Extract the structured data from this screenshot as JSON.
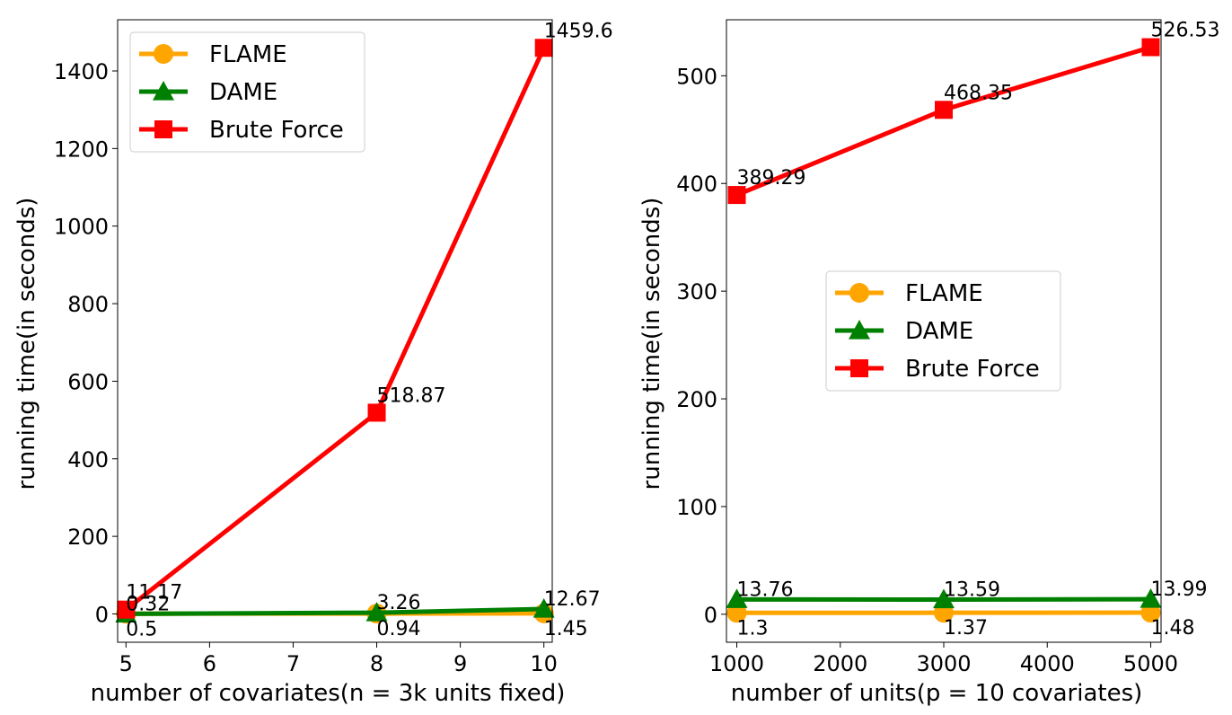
{
  "chart_data": [
    {
      "type": "line",
      "xlabel": "number of covariates(n = 3k units fixed)",
      "ylabel": "running time(in seconds)",
      "x": [
        5,
        8,
        10
      ],
      "xlim": [
        4.9,
        10.1
      ],
      "ylim": [
        -73,
        1532
      ],
      "xticks": [
        5,
        6,
        7,
        8,
        9,
        10
      ],
      "yticks": [
        0,
        200,
        400,
        600,
        800,
        1000,
        1200,
        1400
      ],
      "grid": false,
      "legend_position": "upper-left",
      "series": [
        {
          "name": "FLAME",
          "values": [
            0.5,
            0.94,
            1.45
          ],
          "labels": [
            "0.5",
            "0.94",
            "1.45"
          ],
          "color": "#ffa500",
          "marker": "circle",
          "label_pos": "below"
        },
        {
          "name": "DAME",
          "values": [
            0.32,
            3.26,
            12.67
          ],
          "labels": [
            "0.32",
            "3.26",
            "12.67"
          ],
          "color": "#008000",
          "marker": "triangle",
          "label_pos": "above"
        },
        {
          "name": "Brute Force",
          "values": [
            11.17,
            518.87,
            1459.6
          ],
          "labels": [
            "11.17",
            "518.87",
            "1459.6"
          ],
          "color": "#ff0000",
          "marker": "square",
          "label_pos": "above-high"
        }
      ]
    },
    {
      "type": "line",
      "xlabel": "number of units(p = 10 covariates)",
      "ylabel": "running time(in seconds)",
      "x": [
        1000,
        3000,
        5000
      ],
      "xlim": [
        900,
        5100
      ],
      "ylim": [
        -26,
        552
      ],
      "xticks": [
        1000,
        2000,
        3000,
        4000,
        5000
      ],
      "yticks": [
        0,
        100,
        200,
        300,
        400,
        500
      ],
      "grid": false,
      "legend_position": "center-right",
      "series": [
        {
          "name": "FLAME",
          "values": [
            1.3,
            1.37,
            1.48
          ],
          "labels": [
            "1.3",
            "1.37",
            "1.48"
          ],
          "color": "#ffa500",
          "marker": "circle",
          "label_pos": "below"
        },
        {
          "name": "DAME",
          "values": [
            13.76,
            13.59,
            13.99
          ],
          "labels": [
            "13.76",
            "13.59",
            "13.99"
          ],
          "color": "#008000",
          "marker": "triangle",
          "label_pos": "above"
        },
        {
          "name": "Brute Force",
          "values": [
            389.29,
            468.35,
            526.53
          ],
          "labels": [
            "389.29",
            "468.35",
            "526.53"
          ],
          "color": "#ff0000",
          "marker": "square",
          "label_pos": "above-high"
        }
      ]
    }
  ]
}
